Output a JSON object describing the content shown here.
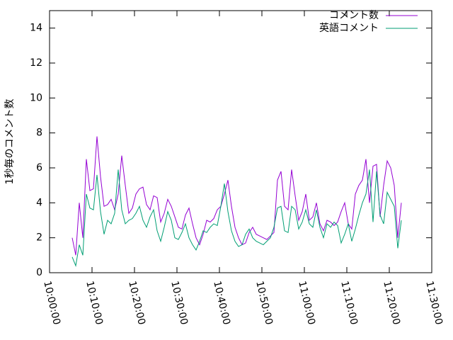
{
  "chart_data": {
    "type": "line",
    "y_label": "1秒毎のコメント数",
    "legend": "top-right",
    "x": [
      "10:05:20",
      "10:06:10",
      "10:07:00",
      "10:07:50",
      "10:08:40",
      "10:09:30",
      "10:10:20",
      "10:11:10",
      "10:12:00",
      "10:12:50",
      "10:13:40",
      "10:14:30",
      "10:15:20",
      "10:16:10",
      "10:17:00",
      "10:17:50",
      "10:18:40",
      "10:19:30",
      "10:20:20",
      "10:21:10",
      "10:22:00",
      "10:22:50",
      "10:23:40",
      "10:24:30",
      "10:25:20",
      "10:26:10",
      "10:27:00",
      "10:27:50",
      "10:28:40",
      "10:29:30",
      "10:30:20",
      "10:31:10",
      "10:32:00",
      "10:32:50",
      "10:33:40",
      "10:34:30",
      "10:35:20",
      "10:36:10",
      "10:37:00",
      "10:37:50",
      "10:38:40",
      "10:39:30",
      "10:40:20",
      "10:41:10",
      "10:42:00",
      "10:42:50",
      "10:43:40",
      "10:44:30",
      "10:45:20",
      "10:46:10",
      "10:47:00",
      "10:47:50",
      "10:48:40",
      "10:49:30",
      "10:50:20",
      "10:51:10",
      "10:52:00",
      "10:52:50",
      "10:53:40",
      "10:54:30",
      "10:55:20",
      "10:56:10",
      "10:57:00",
      "10:57:50",
      "10:58:40",
      "10:59:30",
      "11:00:20",
      "11:01:10",
      "11:02:00",
      "11:02:50",
      "11:03:40",
      "11:04:30",
      "11:05:20",
      "11:06:10",
      "11:07:00",
      "11:07:50",
      "11:08:40",
      "11:09:30",
      "11:10:20",
      "11:11:10",
      "11:12:00",
      "11:12:50",
      "11:13:40",
      "11:14:30",
      "11:15:20",
      "11:16:10",
      "11:17:00",
      "11:17:50",
      "11:18:40",
      "11:19:30",
      "11:20:20",
      "11:21:10",
      "11:22:00",
      "11:22:50"
    ],
    "series": [
      {
        "name": "コメント数",
        "color": "#9400d3",
        "values": [
          2.0,
          1.0,
          4.0,
          2.0,
          6.5,
          4.7,
          4.8,
          7.8,
          5.5,
          3.8,
          3.9,
          4.2,
          3.6,
          4.5,
          6.7,
          5.0,
          3.4,
          3.7,
          4.5,
          4.8,
          4.9,
          3.9,
          3.6,
          4.4,
          4.3,
          2.9,
          3.4,
          4.2,
          3.8,
          3.2,
          2.6,
          2.5,
          3.3,
          3.7,
          2.8,
          2.0,
          1.6,
          2.2,
          3.0,
          2.9,
          3.1,
          3.6,
          3.8,
          4.5,
          5.3,
          3.8,
          2.6,
          2.0,
          1.6,
          1.7,
          2.3,
          2.6,
          2.2,
          2.1,
          2.0,
          1.9,
          2.1,
          2.3,
          5.3,
          5.8,
          3.8,
          3.6,
          5.9,
          4.4,
          3.0,
          3.5,
          4.5,
          3.0,
          3.2,
          4.0,
          2.8,
          2.4,
          3.0,
          2.9,
          2.7,
          2.9,
          3.5,
          4.0,
          2.8,
          2.5,
          4.5,
          5.0,
          5.3,
          6.5,
          4.0,
          6.1,
          6.2,
          3.2,
          5.0,
          6.4,
          6.0,
          5.0,
          2.0,
          4.0
        ]
      },
      {
        "name": "英語コメント",
        "color": "#009e73",
        "values": [
          0.9,
          0.4,
          1.6,
          1.0,
          4.5,
          3.7,
          3.6,
          5.6,
          3.5,
          2.2,
          3.0,
          2.8,
          3.4,
          5.9,
          3.6,
          2.8,
          3.0,
          3.1,
          3.4,
          3.8,
          3.0,
          2.6,
          3.2,
          3.6,
          2.4,
          1.8,
          2.6,
          3.5,
          3.0,
          2.0,
          1.9,
          2.3,
          2.8,
          2.0,
          1.6,
          1.3,
          1.8,
          2.4,
          2.3,
          2.6,
          2.8,
          2.7,
          3.8,
          5.1,
          3.5,
          2.4,
          1.8,
          1.5,
          1.6,
          2.2,
          2.5,
          2.0,
          1.8,
          1.7,
          1.6,
          1.8,
          2.0,
          2.6,
          3.7,
          3.8,
          2.4,
          2.3,
          3.8,
          3.6,
          2.5,
          2.9,
          3.6,
          2.8,
          2.6,
          3.6,
          2.6,
          2.0,
          2.8,
          2.6,
          2.9,
          2.7,
          1.7,
          2.2,
          2.8,
          1.8,
          2.5,
          3.3,
          4.0,
          4.5,
          5.9,
          2.9,
          5.8,
          3.3,
          2.8,
          4.6,
          4.2,
          3.8,
          1.4,
          3.0
        ]
      }
    ],
    "xlim": [
      "10:00:00",
      "11:30:00"
    ],
    "xticks": [
      "10:00:00",
      "10:10:00",
      "10:20:00",
      "10:30:00",
      "10:40:00",
      "10:50:00",
      "11:00:00",
      "11:10:00",
      "11:20:00",
      "11:30:00"
    ],
    "ylim": [
      0,
      15
    ],
    "yticks": [
      0,
      2,
      4,
      6,
      8,
      10,
      12,
      14
    ]
  }
}
